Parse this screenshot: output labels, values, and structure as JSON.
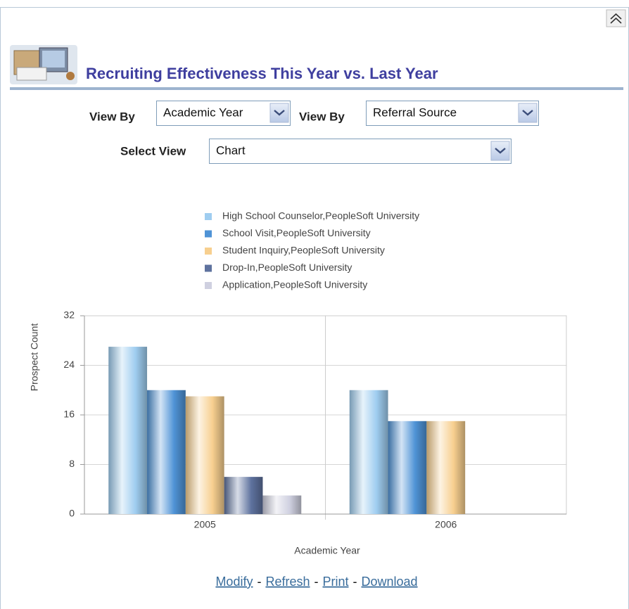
{
  "header": {
    "title": "Recruiting Effectiveness This Year vs. Last Year"
  },
  "controls": [
    {
      "label": "View By",
      "value": "Academic Year"
    },
    {
      "label": "View By",
      "value": "Referral Source"
    },
    {
      "label": "Select View",
      "value": "Chart"
    }
  ],
  "chart_data": {
    "type": "bar",
    "ylabel": "Prospect Count",
    "xlabel": "Academic Year",
    "categories": [
      "2005",
      "2006"
    ],
    "series": [
      {
        "name": "High School Counselor,PeopleSoft University",
        "color": "#9fcdf0",
        "values": [
          27,
          20
        ]
      },
      {
        "name": "School Visit,PeopleSoft University",
        "color": "#4f93d6",
        "values": [
          20,
          15
        ]
      },
      {
        "name": "Student Inquiry,PeopleSoft University",
        "color": "#f7cf8f",
        "values": [
          19,
          15
        ]
      },
      {
        "name": "Drop-In,PeopleSoft University",
        "color": "#5e729e",
        "values": [
          6,
          null
        ]
      },
      {
        "name": "Application,PeopleSoft University",
        "color": "#cfd0e0",
        "values": [
          3,
          null
        ]
      }
    ],
    "ylim": [
      0,
      32
    ],
    "yticks": [
      0,
      8,
      16,
      24,
      32
    ],
    "grid": true
  },
  "links": {
    "items": [
      "Modify",
      "Refresh",
      "Print",
      "Download"
    ],
    "separator": "-"
  }
}
